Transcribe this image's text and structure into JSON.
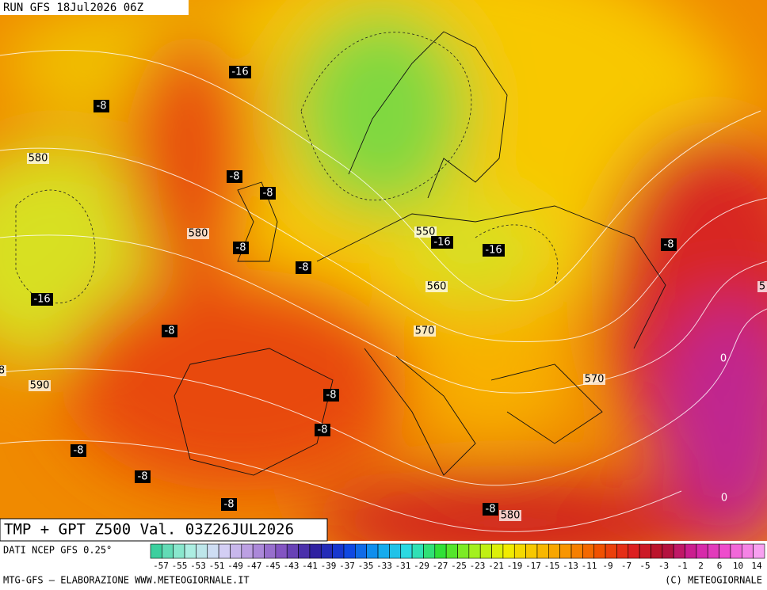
{
  "header": {
    "run": "RUN GFS 18Jul2026 06Z"
  },
  "map": {
    "labels": [
      "-16",
      "-8",
      "580",
      "-8",
      "-8",
      "580",
      "-8",
      "550",
      "-16",
      "-16",
      "-8",
      "-8",
      "-16",
      "560",
      "5",
      "-8",
      "570",
      "0",
      "590",
      "-8",
      "570",
      "-8",
      "-8",
      "-8",
      "-8",
      "0",
      "-8",
      "580",
      "8"
    ]
  },
  "footer": {
    "title": "TMP + GPT Z500 Val. 03Z26JUL2026",
    "source": "DATI NCEP GFS 0.25°",
    "scale": [
      "-57",
      "-55",
      "-53",
      "-51",
      "-49",
      "-47",
      "-45",
      "-43",
      "-41",
      "-39",
      "-37",
      "-35",
      "-33",
      "-31",
      "-29",
      "-27",
      "-25",
      "-23",
      "-21",
      "-19",
      "-17",
      "-15",
      "-13",
      "-11",
      "-9",
      "-7",
      "-5",
      "-3",
      "-1",
      "2",
      "6",
      "10",
      "14"
    ],
    "credit": "MTG-GFS — ELABORAZIONE WWW.METEOGIORNALE.IT",
    "copyright": "(C) METEOGIORNALE"
  }
}
